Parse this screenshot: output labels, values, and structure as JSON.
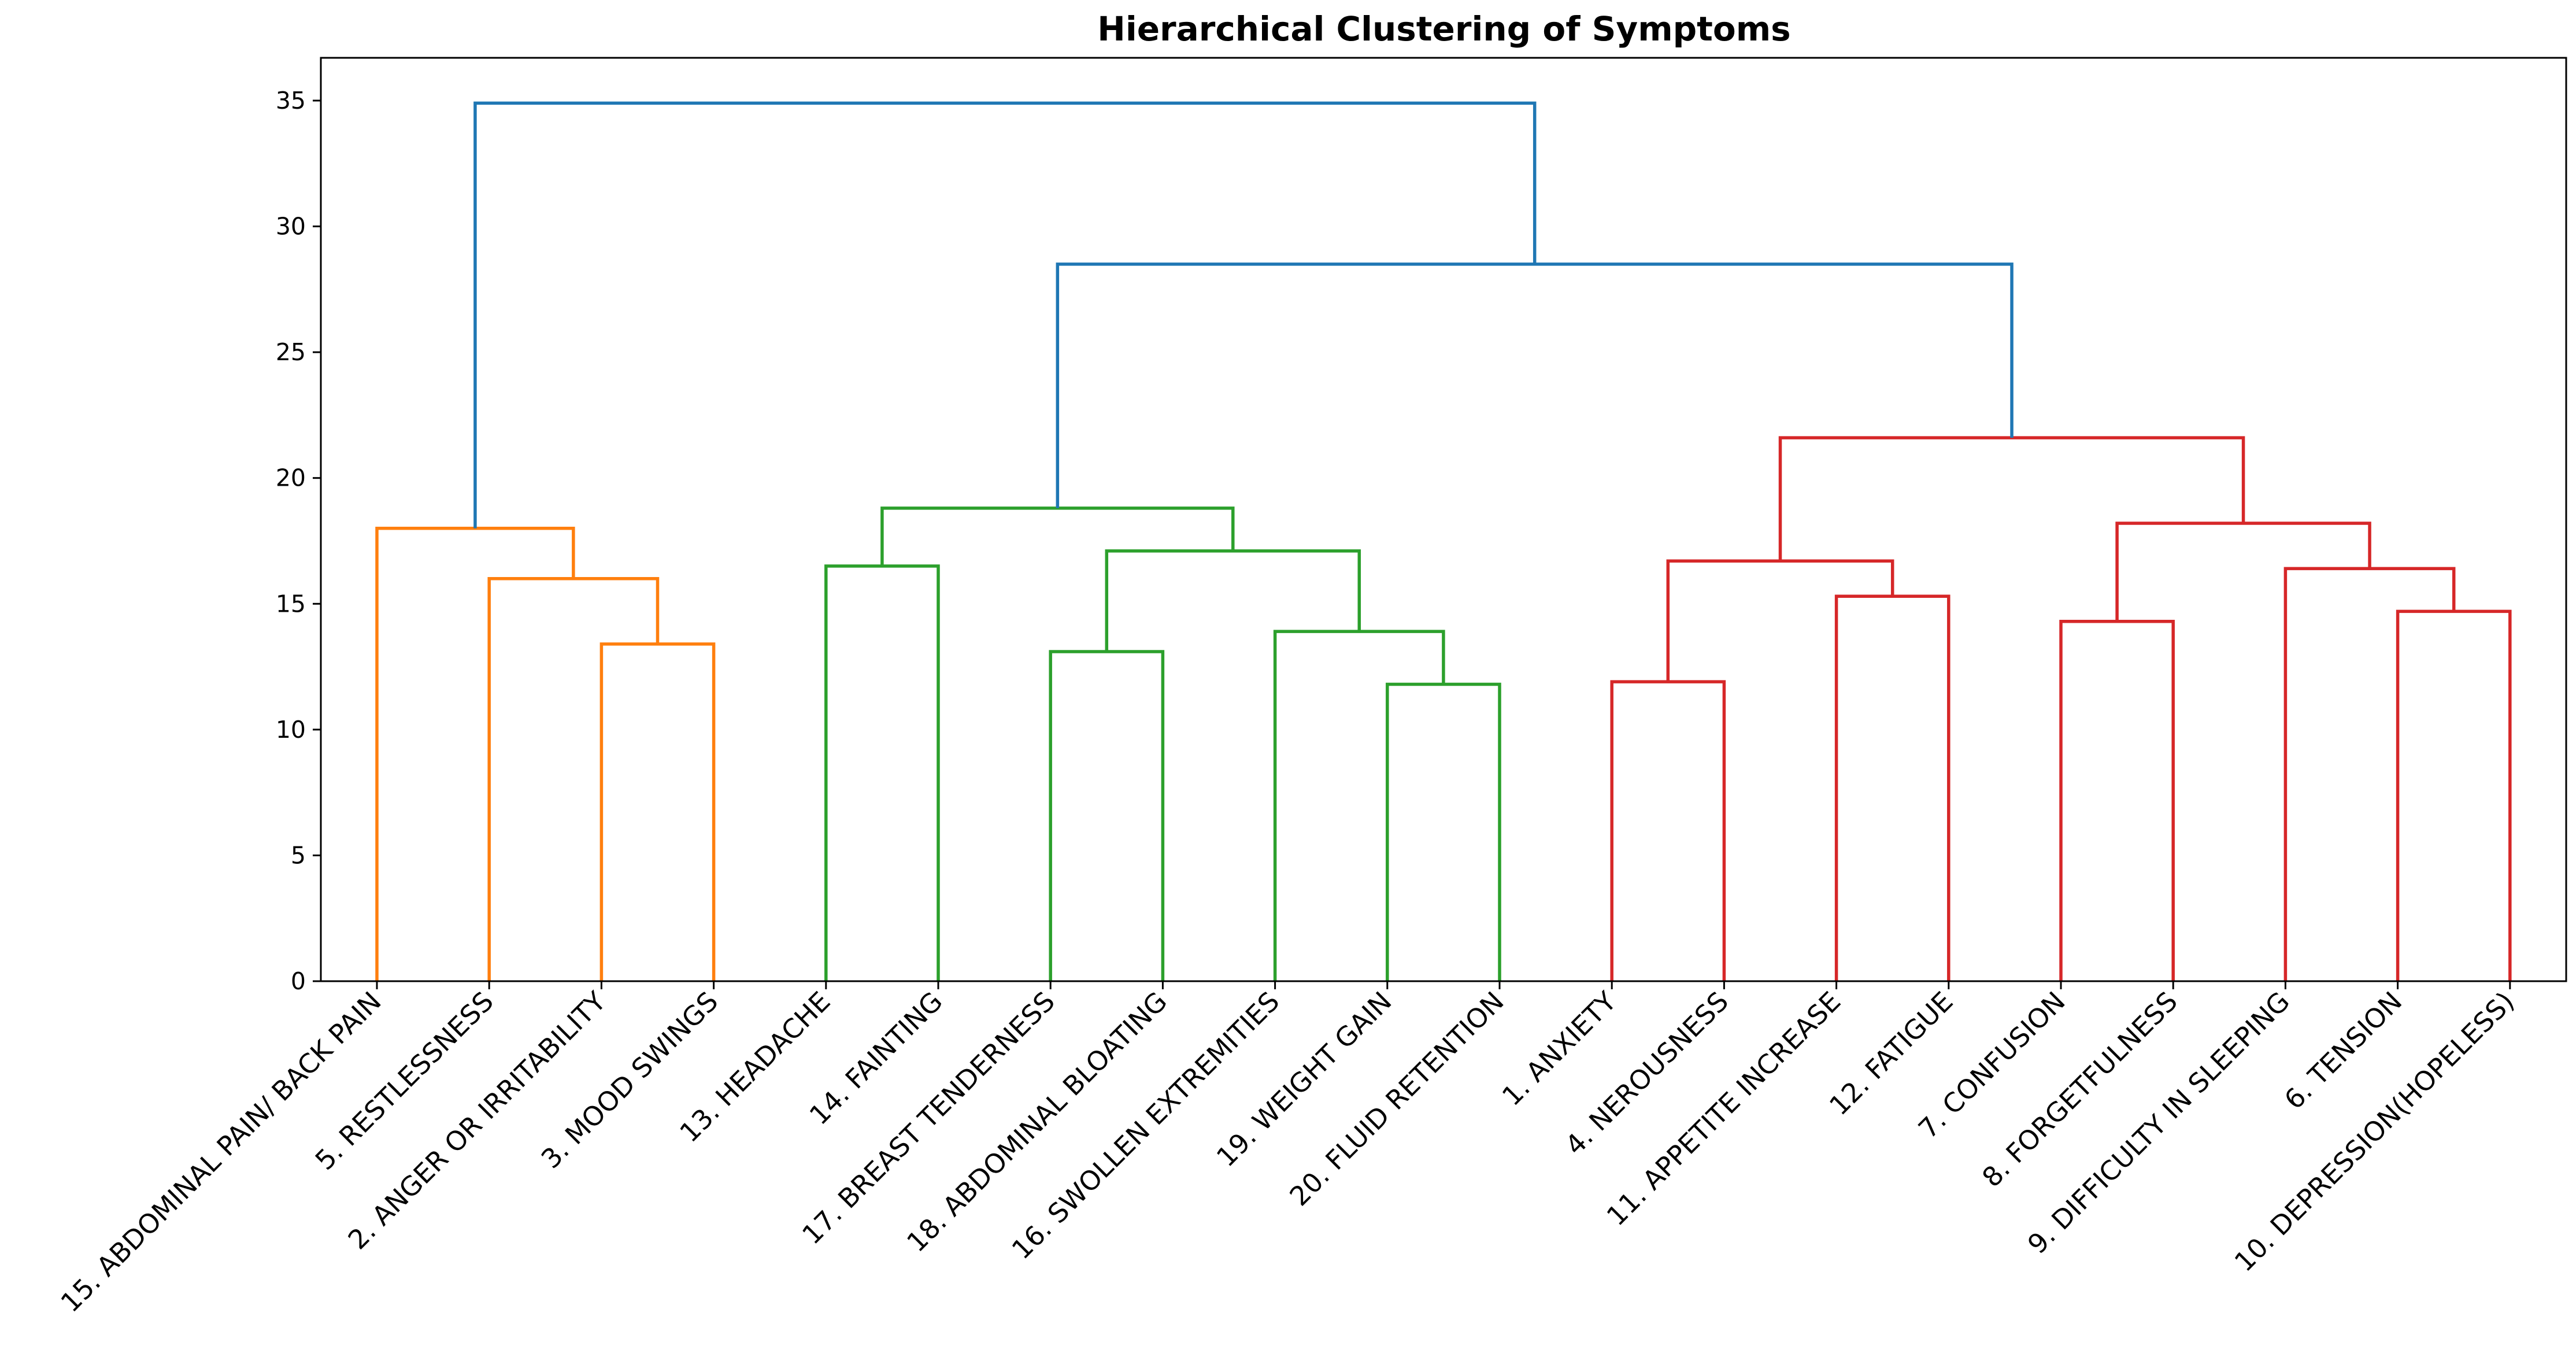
{
  "chart_data": {
    "type": "dendrogram",
    "title": "Hierarchical Clustering of Symptoms",
    "xlabel": "",
    "ylabel": "",
    "ylim": [
      0,
      36.7
    ],
    "yticks": [
      0,
      5,
      10,
      15,
      20,
      25,
      30,
      35
    ],
    "grid": false,
    "leaves": [
      "15. ABDOMINAL PAIN/ BACK PAIN",
      "5. RESTLESSNESS",
      "2. ANGER OR IRRITABILITY",
      "3. MOOD SWINGS",
      "13. HEADACHE",
      "14. FAINTING",
      "17. BREAST TENDERNESS",
      "18. ABDOMINAL BLOATING",
      "16. SWOLLEN EXTREMITIES",
      "19. WEIGHT GAIN",
      "20. FLUID RETENTION",
      "1. ANXIETY",
      "4. NEROUSNESS",
      "11. APPETITE INCREASE",
      "12. FATIGUE",
      "7. CONFUSION",
      "8. FORGETFULNESS",
      "9. DIFFICULTY IN SLEEPING",
      "6. TENSION",
      "10. DEPRESSION(HOPELESS)"
    ],
    "colors": {
      "orange": "#ff7f0e",
      "green": "#2ca02c",
      "red": "#d62728",
      "blue": "#1f77b4"
    },
    "merges": [
      {
        "left": 2,
        "right": 3,
        "height": 13.4,
        "color": "orange"
      },
      {
        "left": 1,
        "right": "n0",
        "height": 16.0,
        "color": "orange"
      },
      {
        "left": 0,
        "right": "n1",
        "height": 18.0,
        "color": "orange"
      },
      {
        "left": 4,
        "right": 5,
        "height": 16.5,
        "color": "green"
      },
      {
        "left": 6,
        "right": 7,
        "height": 13.1,
        "color": "green"
      },
      {
        "left": 9,
        "right": 10,
        "height": 11.8,
        "color": "green"
      },
      {
        "left": 8,
        "right": "n5",
        "height": 13.9,
        "color": "green"
      },
      {
        "left": "n4",
        "right": "n6",
        "height": 17.1,
        "color": "green"
      },
      {
        "left": "n3",
        "right": "n7",
        "height": 18.8,
        "color": "green"
      },
      {
        "left": 11,
        "right": 12,
        "height": 11.9,
        "color": "red"
      },
      {
        "left": 13,
        "right": 14,
        "height": 15.3,
        "color": "red"
      },
      {
        "left": "n9",
        "right": "n10",
        "height": 16.7,
        "color": "red"
      },
      {
        "left": 15,
        "right": 16,
        "height": 14.3,
        "color": "red"
      },
      {
        "left": 18,
        "right": 19,
        "height": 14.7,
        "color": "red"
      },
      {
        "left": 17,
        "right": "n13",
        "height": 16.4,
        "color": "red"
      },
      {
        "left": "n12",
        "right": "n14",
        "height": 18.2,
        "color": "red"
      },
      {
        "left": "n11",
        "right": "n15",
        "height": 21.6,
        "color": "red"
      },
      {
        "left": "n8",
        "right": "n16",
        "height": 28.5,
        "color": "blue"
      },
      {
        "left": "n2",
        "right": "n17",
        "height": 34.9,
        "color": "blue"
      }
    ]
  }
}
